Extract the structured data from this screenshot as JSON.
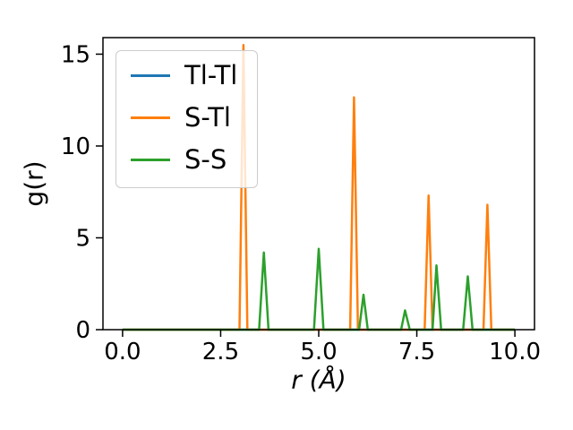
{
  "figure": {
    "background": "#ffffff"
  },
  "chart_data": {
    "type": "line",
    "title": "",
    "xlabel": "r (Å)",
    "ylabel": "g(r)",
    "xlim": [
      -0.5,
      10.5
    ],
    "ylim": [
      0,
      15.9
    ],
    "grid": false,
    "legend_position": "upper left",
    "x_tick_values": [
      0.0,
      2.5,
      5.0,
      7.5,
      10.0
    ],
    "x_tick_labels": [
      "0.0",
      "2.5",
      "5.0",
      "7.5",
      "10.0"
    ],
    "y_tick_values": [
      0,
      5,
      10,
      15
    ],
    "y_tick_labels": [
      "0",
      "5",
      "10",
      "15"
    ],
    "series": [
      {
        "name": "Tl-Tl",
        "color": "#1f77b4",
        "points": [
          [
            0,
            0
          ],
          [
            10,
            0
          ]
        ]
      },
      {
        "name": "S-Tl",
        "color": "#ff7f0e",
        "points": [
          [
            0,
            0
          ],
          [
            2.98,
            0
          ],
          [
            3.08,
            15.5
          ],
          [
            3.18,
            0
          ],
          [
            5.8,
            0
          ],
          [
            5.9,
            12.65
          ],
          [
            6.0,
            0
          ],
          [
            7.7,
            0
          ],
          [
            7.8,
            7.3
          ],
          [
            7.9,
            0
          ],
          [
            9.2,
            0
          ],
          [
            9.3,
            6.8
          ],
          [
            9.4,
            0
          ],
          [
            10,
            0
          ]
        ]
      },
      {
        "name": "S-S",
        "color": "#2ca02c",
        "points": [
          [
            0,
            0
          ],
          [
            3.48,
            0
          ],
          [
            3.6,
            4.2
          ],
          [
            3.72,
            0
          ],
          [
            4.88,
            0
          ],
          [
            5.0,
            4.4
          ],
          [
            5.12,
            0
          ],
          [
            6.03,
            0
          ],
          [
            6.14,
            1.9
          ],
          [
            6.25,
            0
          ],
          [
            7.1,
            0
          ],
          [
            7.2,
            1.05
          ],
          [
            7.32,
            0
          ],
          [
            7.9,
            0
          ],
          [
            8.0,
            3.5
          ],
          [
            8.12,
            0
          ],
          [
            8.68,
            0
          ],
          [
            8.8,
            2.9
          ],
          [
            8.92,
            0
          ],
          [
            10,
            0
          ]
        ]
      }
    ]
  }
}
